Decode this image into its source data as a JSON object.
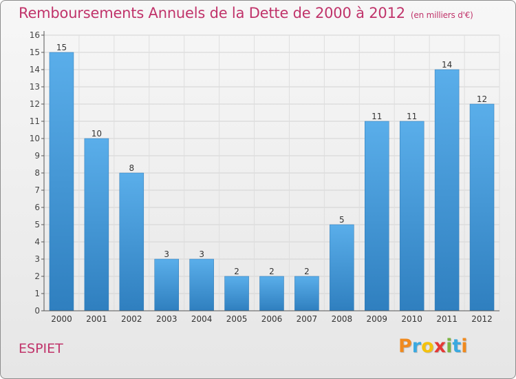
{
  "chart_data": {
    "type": "bar",
    "title": "Remboursements Annuels de la Dette de 2000 à 2012",
    "unit": "(en milliers d'€)",
    "categories": [
      "2000",
      "2001",
      "2002",
      "2003",
      "2004",
      "2005",
      "2006",
      "2007",
      "2008",
      "2009",
      "2010",
      "2011",
      "2012"
    ],
    "values": [
      15,
      10,
      8,
      3,
      3,
      2,
      2,
      2,
      5,
      11,
      11,
      14,
      12
    ],
    "ylim": [
      0,
      16
    ],
    "yticks": [
      0,
      1,
      2,
      3,
      4,
      5,
      6,
      7,
      8,
      9,
      10,
      11,
      12,
      13,
      14,
      15,
      16
    ],
    "grid": true,
    "bar_color": "#3d8fd6"
  },
  "place_name": "ESPIET",
  "logo": {
    "letters": [
      "P",
      "r",
      "o",
      "x",
      "i",
      "t",
      "i"
    ],
    "colors": [
      "#f08a1e",
      "#3aa9e0",
      "#f4c20d",
      "#e53935",
      "#7cb342",
      "#3aa9e0",
      "#f08a1e"
    ]
  }
}
